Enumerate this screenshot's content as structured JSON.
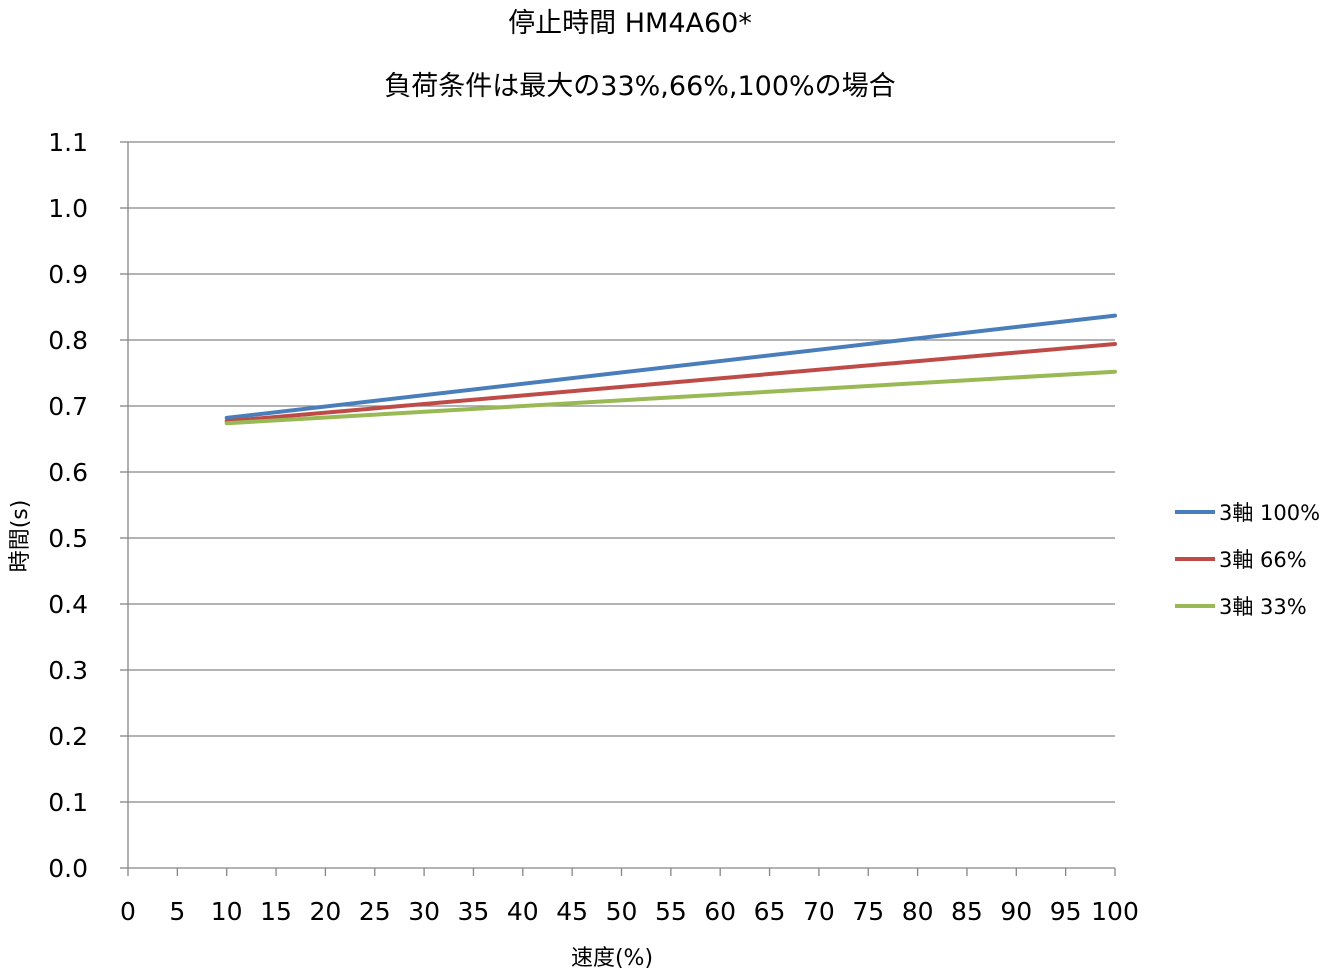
{
  "chart_data": {
    "type": "line",
    "title": "停止時間 HM4A60*",
    "subtitle": "負荷条件は最大の33%,66%,100%の場合",
    "xlabel": "速度(%)",
    "ylabel": "時間(s)",
    "xlim": [
      0,
      100
    ],
    "ylim": [
      0,
      1.1
    ],
    "x_ticks": [
      "0",
      "5",
      "10",
      "15",
      "20",
      "25",
      "30",
      "35",
      "40",
      "45",
      "50",
      "55",
      "60",
      "65",
      "70",
      "75",
      "80",
      "85",
      "90",
      "95",
      "100"
    ],
    "y_ticks": [
      "0.0",
      "0.1",
      "0.2",
      "0.3",
      "0.4",
      "0.5",
      "0.6",
      "0.7",
      "0.8",
      "0.9",
      "1.0",
      "1.1"
    ],
    "grid": "horizontal",
    "legend_position": "right",
    "series": [
      {
        "name": "3軸 100%",
        "color": "#4a7ebb",
        "x": [
          10,
          100
        ],
        "y": [
          0.682,
          0.837
        ]
      },
      {
        "name": "3軸 66%",
        "color": "#be4b48",
        "x": [
          10,
          100
        ],
        "y": [
          0.677,
          0.794
        ]
      },
      {
        "name": "3軸 33%",
        "color": "#98b954",
        "x": [
          10,
          100
        ],
        "y": [
          0.674,
          0.752
        ]
      }
    ]
  }
}
